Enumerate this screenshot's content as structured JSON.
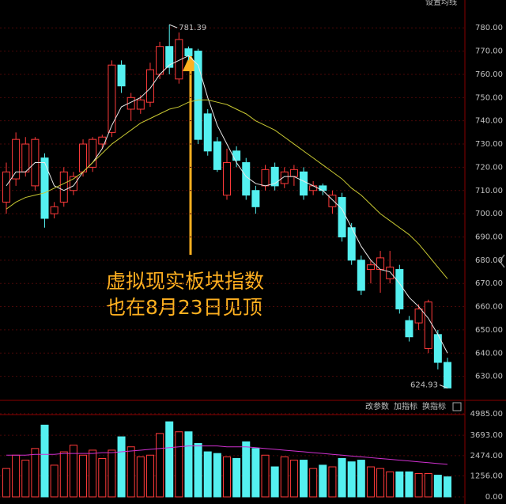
{
  "top_right_button": "设置均线",
  "indicator_buttons": [
    "改参数",
    "加指标",
    "换指标"
  ],
  "chart_data": [
    {
      "type": "candlestick",
      "annotation_lines": [
        "虚拟现实板块指数",
        "也在8月23日见顶"
      ],
      "up_color": "#ff3a3a",
      "down_color": "#54f0f0",
      "open": [
        705,
        715,
        718,
        712,
        724,
        700,
        705,
        710,
        718,
        720,
        730,
        735,
        764,
        745,
        745,
        748,
        760,
        772,
        758,
        771,
        770,
        743,
        731,
        708,
        727,
        722,
        710,
        712,
        720,
        713,
        716,
        718,
        710,
        712,
        703,
        707,
        694,
        680,
        676,
        676,
        672,
        676,
        654,
        653,
        642,
        648,
        636
      ],
      "high": [
        722,
        735,
        733,
        733,
        726,
        705,
        720,
        718,
        732,
        733,
        734,
        766,
        766,
        752,
        751,
        765,
        774,
        781.39,
        778,
        772,
        771,
        745,
        733,
        728,
        729,
        724,
        712,
        721,
        722,
        720,
        721,
        720,
        714,
        713,
        710,
        709,
        696,
        682,
        680,
        684,
        684,
        678,
        656,
        661,
        663,
        650,
        638
      ],
      "low": [
        700,
        712,
        716,
        710,
        694,
        698,
        703,
        708,
        716,
        718,
        728,
        733,
        752,
        740,
        743,
        746,
        758,
        760,
        756,
        766,
        730,
        725,
        718,
        706,
        720,
        706,
        700,
        710,
        710,
        711,
        712,
        706,
        708,
        708,
        700,
        688,
        678,
        665,
        670,
        666,
        670,
        657,
        645,
        650,
        640,
        633,
        624.93
      ],
      "close": [
        718,
        732,
        730,
        732,
        698,
        703,
        718,
        716,
        730,
        732,
        733,
        764,
        755,
        750,
        749,
        762,
        772,
        763,
        775,
        768,
        732,
        727,
        719,
        722,
        723,
        708,
        703,
        719,
        712,
        718,
        719,
        708,
        712,
        710,
        708,
        690,
        680,
        667,
        678,
        681,
        677,
        659,
        647,
        659,
        662,
        636,
        625
      ],
      "lines": [
        {
          "color": "#e8e8e8",
          "values": [
            712,
            718,
            718,
            722,
            722,
            712,
            710,
            712,
            718,
            722,
            728,
            738,
            746,
            748,
            750,
            754,
            760,
            764,
            766,
            768,
            764,
            750,
            738,
            730,
            722,
            716,
            713,
            712,
            713,
            716,
            716,
            714,
            712,
            710,
            706,
            702,
            694,
            686,
            680,
            676,
            675,
            670,
            664,
            660,
            655,
            648,
            640
          ]
        },
        {
          "color": "#c8c832",
          "values": [
            702,
            705,
            707,
            708,
            709,
            711,
            713,
            715,
            718,
            722,
            726,
            730,
            733,
            736,
            739,
            741,
            743,
            745,
            746,
            748,
            749,
            749,
            748,
            747,
            745,
            743,
            740,
            738,
            736,
            733,
            730,
            727,
            724,
            721,
            718,
            715,
            711,
            708,
            704,
            700,
            697,
            694,
            691,
            687,
            682,
            677,
            672
          ]
        }
      ],
      "high_label": 781.39,
      "low_label": 624.93,
      "ylim": [
        620,
        792
      ],
      "yticks": [
        {
          "value": 630,
          "label": "630.00"
        },
        {
          "value": 640,
          "label": "640.00"
        },
        {
          "value": 650,
          "label": "650.00"
        },
        {
          "value": 660,
          "label": "660.00"
        },
        {
          "value": 670,
          "label": "670.00"
        },
        {
          "value": 680,
          "label": "680.00"
        },
        {
          "value": 690,
          "label": "690.00"
        },
        {
          "value": 700,
          "label": "700.00"
        },
        {
          "value": 710,
          "label": "710.00"
        },
        {
          "value": 720,
          "label": "720.00"
        },
        {
          "value": 730,
          "label": "730.00"
        },
        {
          "value": 740,
          "label": "740.00"
        },
        {
          "value": 750,
          "label": "750.00"
        },
        {
          "value": 760,
          "label": "760.00"
        },
        {
          "value": 770,
          "label": "770.00"
        },
        {
          "value": 780,
          "label": "780.00"
        }
      ],
      "grid": true
    },
    {
      "type": "volume",
      "values": [
        1700,
        2500,
        2200,
        2900,
        4300,
        1900,
        2700,
        3100,
        2500,
        2800,
        2300,
        2800,
        3600,
        3000,
        2400,
        2500,
        3800,
        4500,
        3900,
        3900,
        3200,
        2700,
        2600,
        2400,
        2300,
        3300,
        2900,
        2500,
        1800,
        2400,
        2200,
        2200,
        1700,
        1900,
        1800,
        2300,
        2100,
        2200,
        1800,
        1700,
        1500,
        1500,
        1500,
        1400,
        1400,
        1300,
        1200
      ],
      "lines": [
        {
          "color": "#d030d0",
          "values": [
            2500,
            2500,
            2500,
            2550,
            2550,
            2550,
            2600,
            2600,
            2600,
            2600,
            2650,
            2650,
            2700,
            2750,
            2800,
            2850,
            2900,
            2950,
            3000,
            3050,
            3050,
            3050,
            3050,
            3000,
            3000,
            3000,
            2950,
            2900,
            2850,
            2800,
            2750,
            2700,
            2650,
            2600,
            2550,
            2500,
            2450,
            2400,
            2350,
            2300,
            2250,
            2200,
            2150,
            2100,
            2050,
            2000,
            1950
          ]
        }
      ],
      "ylim": [
        0,
        5500
      ],
      "yticks": [
        {
          "value": 0,
          "label": "0.00"
        },
        {
          "value": 1256,
          "label": "1256.00"
        },
        {
          "value": 2474,
          "label": "2474.00"
        },
        {
          "value": 3693,
          "label": "3693.00"
        },
        {
          "value": 4985,
          "label": "4985.00"
        }
      ],
      "grid": true
    }
  ]
}
